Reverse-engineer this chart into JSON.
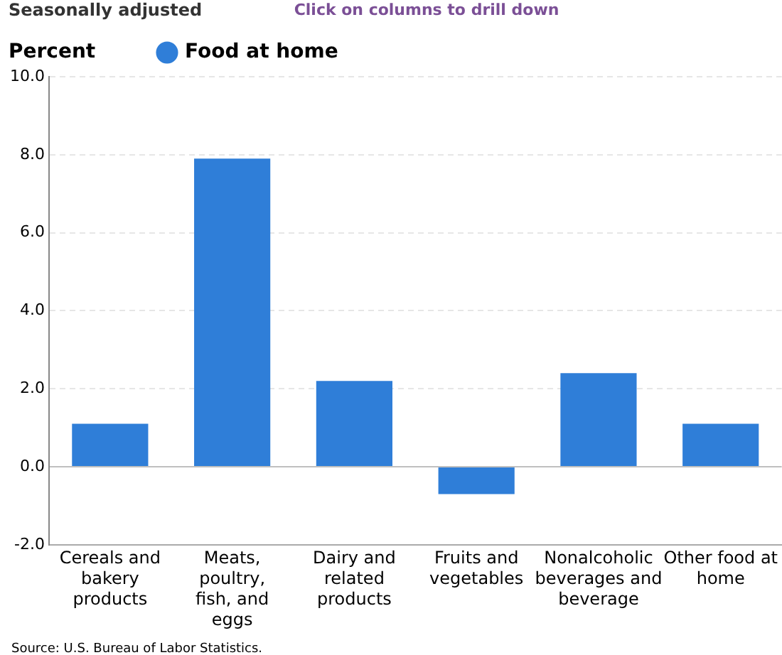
{
  "chart_data": {
    "type": "bar",
    "subtitle": "Seasonally adjusted",
    "ylabel": "Percent",
    "annotations": [
      "Click on columns to drill down",
      "Source: U.S. Bureau of Labor Statistics."
    ],
    "categories": [
      "Cereals and bakery products",
      "Meats, poultry, fish, and eggs",
      "Dairy and related products",
      "Fruits and vegetables",
      "Nonalcoholic beverages and beverage",
      "Other food at home"
    ],
    "series": [
      {
        "name": "Food at home",
        "color": "#2f7ed8",
        "values": [
          1.1,
          7.9,
          2.2,
          -0.7,
          2.4,
          1.1
        ]
      }
    ],
    "ylim": [
      -2,
      10
    ],
    "yticks": [
      {
        "value": -2,
        "label": "-2.0"
      },
      {
        "value": 0,
        "label": "0.0"
      },
      {
        "value": 2,
        "label": "2.0"
      },
      {
        "value": 4,
        "label": "4.0"
      },
      {
        "value": 6,
        "label": "6.0"
      },
      {
        "value": 8,
        "label": "8.0"
      },
      {
        "value": 10,
        "label": "10.0"
      }
    ],
    "grid": "y",
    "legend": "top left"
  }
}
